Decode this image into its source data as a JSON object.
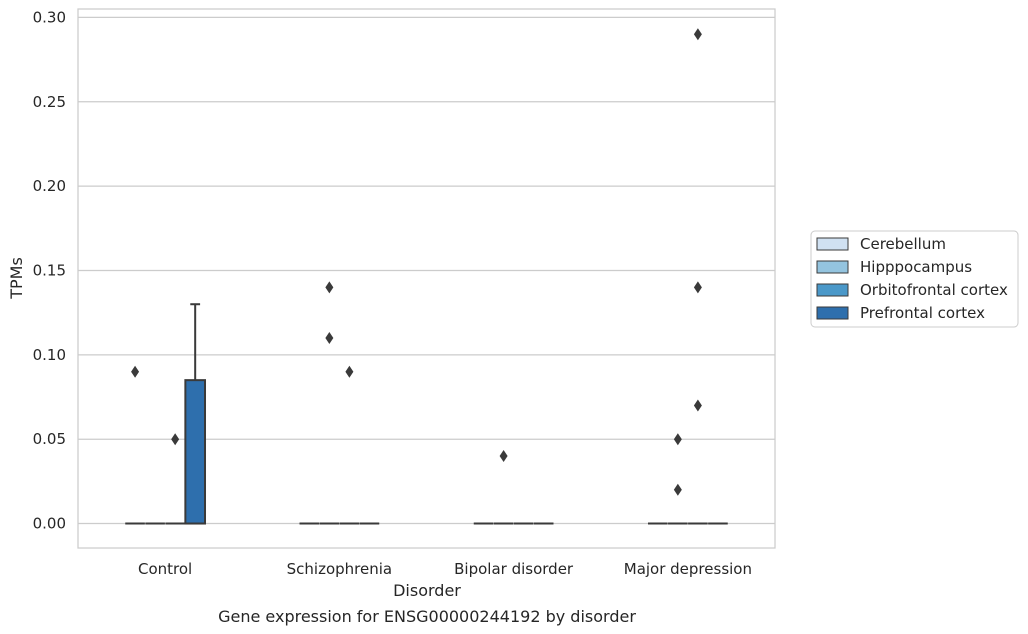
{
  "chart_data": {
    "type": "box",
    "xlabel": "Disorder",
    "ylabel": "TPMs",
    "caption": "Gene expression for ENSG00000244192 by disorder",
    "ylim": [
      -0.0145,
      0.305
    ],
    "y_ticks": [
      "0.00",
      "0.05",
      "0.10",
      "0.15",
      "0.20",
      "0.25",
      "0.30"
    ],
    "grid": "horizontal",
    "legend_position": "right",
    "categories": [
      "Control",
      "Schizophrenia",
      "Bipolar disorder",
      "Major depression"
    ],
    "hues": [
      {
        "name": "Cerebellum",
        "color": "#d0e1f2"
      },
      {
        "name": "Hipppocampus",
        "color": "#94c4df"
      },
      {
        "name": "Orbitofrontal cortex",
        "color": "#4a98c9"
      },
      {
        "name": "Prefrontal cortex",
        "color": "#2e6fad"
      }
    ],
    "boxes": [
      {
        "category": "Control",
        "hue": "Cerebellum",
        "whislo": 0.0,
        "q1": 0.0,
        "med": 0.0,
        "q3": 0.0,
        "whishi": 0.0,
        "fliers": [
          0.09
        ]
      },
      {
        "category": "Control",
        "hue": "Hipppocampus",
        "whislo": 0.0,
        "q1": 0.0,
        "med": 0.0,
        "q3": 0.0,
        "whishi": 0.0,
        "fliers": []
      },
      {
        "category": "Control",
        "hue": "Orbitofrontal cortex",
        "whislo": 0.0,
        "q1": 0.0,
        "med": 0.0,
        "q3": 0.0,
        "whishi": 0.0,
        "fliers": [
          0.05
        ]
      },
      {
        "category": "Control",
        "hue": "Prefrontal cortex",
        "whislo": 0.0,
        "q1": 0.0,
        "med": 0.0,
        "q3": 0.085,
        "whishi": 0.13,
        "fliers": []
      },
      {
        "category": "Schizophrenia",
        "hue": "Cerebellum",
        "whislo": 0.0,
        "q1": 0.0,
        "med": 0.0,
        "q3": 0.0,
        "whishi": 0.0,
        "fliers": []
      },
      {
        "category": "Schizophrenia",
        "hue": "Hipppocampus",
        "whislo": 0.0,
        "q1": 0.0,
        "med": 0.0,
        "q3": 0.0,
        "whishi": 0.0,
        "fliers": [
          0.14,
          0.11
        ]
      },
      {
        "category": "Schizophrenia",
        "hue": "Orbitofrontal cortex",
        "whislo": 0.0,
        "q1": 0.0,
        "med": 0.0,
        "q3": 0.0,
        "whishi": 0.0,
        "fliers": [
          0.09
        ]
      },
      {
        "category": "Schizophrenia",
        "hue": "Prefrontal cortex",
        "whislo": 0.0,
        "q1": 0.0,
        "med": 0.0,
        "q3": 0.0,
        "whishi": 0.0,
        "fliers": []
      },
      {
        "category": "Bipolar disorder",
        "hue": "Cerebellum",
        "whislo": 0.0,
        "q1": 0.0,
        "med": 0.0,
        "q3": 0.0,
        "whishi": 0.0,
        "fliers": []
      },
      {
        "category": "Bipolar disorder",
        "hue": "Hipppocampus",
        "whislo": 0.0,
        "q1": 0.0,
        "med": 0.0,
        "q3": 0.0,
        "whishi": 0.0,
        "fliers": [
          0.04
        ]
      },
      {
        "category": "Bipolar disorder",
        "hue": "Orbitofrontal cortex",
        "whislo": 0.0,
        "q1": 0.0,
        "med": 0.0,
        "q3": 0.0,
        "whishi": 0.0,
        "fliers": []
      },
      {
        "category": "Bipolar disorder",
        "hue": "Prefrontal cortex",
        "whislo": 0.0,
        "q1": 0.0,
        "med": 0.0,
        "q3": 0.0,
        "whishi": 0.0,
        "fliers": []
      },
      {
        "category": "Major depression",
        "hue": "Cerebellum",
        "whislo": 0.0,
        "q1": 0.0,
        "med": 0.0,
        "q3": 0.0,
        "whishi": 0.0,
        "fliers": []
      },
      {
        "category": "Major depression",
        "hue": "Hipppocampus",
        "whislo": 0.0,
        "q1": 0.0,
        "med": 0.0,
        "q3": 0.0,
        "whishi": 0.0,
        "fliers": [
          0.05,
          0.02
        ]
      },
      {
        "category": "Major depression",
        "hue": "Orbitofrontal cortex",
        "whislo": 0.0,
        "q1": 0.0,
        "med": 0.0,
        "q3": 0.0,
        "whishi": 0.0,
        "fliers": [
          0.29,
          0.14,
          0.07
        ]
      },
      {
        "category": "Major depression",
        "hue": "Prefrontal cortex",
        "whislo": 0.0,
        "q1": 0.0,
        "med": 0.0,
        "q3": 0.0,
        "whishi": 0.0,
        "fliers": []
      }
    ]
  }
}
